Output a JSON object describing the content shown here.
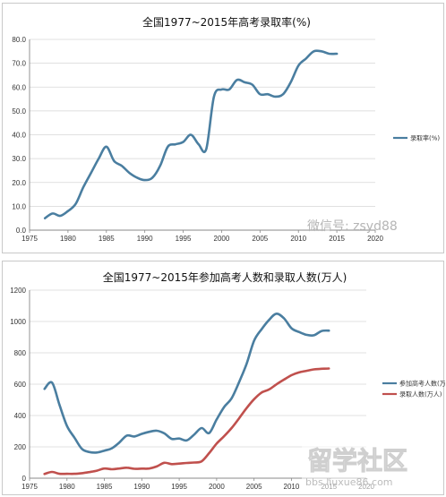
{
  "chart_data": [
    {
      "type": "line",
      "title": "全国1977~2015年高考录取率(%)",
      "xlim": [
        1975,
        2020
      ],
      "ylim": [
        0,
        80
      ],
      "x_ticks": [
        "1975",
        "1980",
        "1985",
        "1990",
        "1995",
        "2000",
        "2005",
        "2010",
        "2015",
        "2020"
      ],
      "y_ticks": [
        "0.0",
        "10.0",
        "20.0",
        "30.0",
        "40.0",
        "50.0",
        "60.0",
        "70.0",
        "80.0"
      ],
      "grid": true,
      "legend_position": "right",
      "series": [
        {
          "name": "录取率(%)",
          "color": "#4a7ea0",
          "x": [
            1977,
            1978,
            1979,
            1980,
            1981,
            1982,
            1983,
            1984,
            1985,
            1986,
            1987,
            1988,
            1989,
            1990,
            1991,
            1992,
            1993,
            1994,
            1995,
            1996,
            1997,
            1998,
            1999,
            2000,
            2001,
            2002,
            2003,
            2004,
            2005,
            2006,
            2007,
            2008,
            2009,
            2010,
            2011,
            2012,
            2013,
            2014,
            2015
          ],
          "values": [
            5,
            7,
            6,
            8,
            11,
            18,
            24,
            30,
            35,
            29,
            27,
            24,
            22,
            21,
            22,
            27,
            35,
            36,
            37,
            40,
            36,
            34,
            56,
            59,
            59,
            63,
            62,
            61,
            57,
            57,
            56,
            57,
            62,
            69,
            72,
            75,
            75,
            74,
            74
          ]
        }
      ]
    },
    {
      "type": "line",
      "title": "全国1977~2015年参加高考人数和录取人数(万人)",
      "xlim": [
        1975,
        2020
      ],
      "ylim": [
        0,
        1200
      ],
      "x_ticks": [
        "1975",
        "1980",
        "1985",
        "1990",
        "1995",
        "2000",
        "2005",
        "2010",
        "2015",
        "2020"
      ],
      "y_ticks": [
        "0",
        "200",
        "400",
        "600",
        "800",
        "1000",
        "1200"
      ],
      "grid": true,
      "legend_position": "right",
      "series": [
        {
          "name": "参加高考人数(万人)",
          "color": "#4a7ea0",
          "x": [
            1977,
            1978,
            1979,
            1980,
            1981,
            1982,
            1983,
            1984,
            1985,
            1986,
            1987,
            1988,
            1989,
            1990,
            1991,
            1992,
            1993,
            1994,
            1995,
            1996,
            1997,
            1998,
            1999,
            2000,
            2001,
            2002,
            2003,
            2004,
            2005,
            2006,
            2007,
            2008,
            2009,
            2010,
            2011,
            2012,
            2013,
            2014,
            2015
          ],
          "values": [
            570,
            610,
            468,
            333,
            259,
            187,
            167,
            164,
            176,
            191,
            228,
            272,
            266,
            283,
            296,
            303,
            286,
            251,
            253,
            241,
            278,
            320,
            288,
            375,
            454,
            510,
            613,
            729,
            877,
            950,
            1010,
            1050,
            1020,
            957,
            933,
            915,
            912,
            939,
            942
          ]
        },
        {
          "name": "录取人数(万人)",
          "color": "#c0504d",
          "x": [
            1977,
            1978,
            1979,
            1980,
            1981,
            1982,
            1983,
            1984,
            1985,
            1986,
            1987,
            1988,
            1989,
            1990,
            1991,
            1992,
            1993,
            1994,
            1995,
            1996,
            1997,
            1998,
            1999,
            2000,
            2001,
            2002,
            2003,
            2004,
            2005,
            2006,
            2007,
            2008,
            2009,
            2010,
            2011,
            2012,
            2013,
            2014,
            2015
          ],
          "values": [
            27,
            40,
            28,
            28,
            28,
            32,
            39,
            48,
            62,
            57,
            62,
            67,
            60,
            61,
            62,
            75,
            98,
            90,
            93,
            97,
            100,
            108,
            160,
            221,
            268,
            320,
            382,
            447,
            504,
            546,
            566,
            599,
            629,
            657,
            675,
            685,
            694,
            698,
            700
          ]
        }
      ]
    }
  ],
  "watermarks": {
    "wechat": "微信号: zsyd88",
    "site_logo": "留学社区",
    "site_url": "bbs.liuxue86.com"
  }
}
